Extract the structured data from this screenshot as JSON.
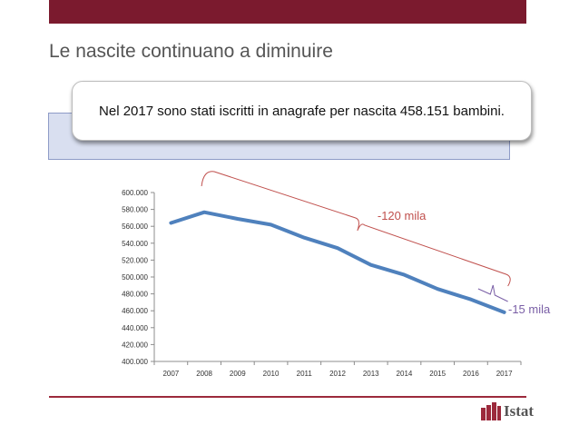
{
  "slide": {
    "title": "Le nascite continuano a diminuire",
    "callout": "Nel 2017 sono stati iscritti in anagrafe per nascita 458.151 bambini.",
    "logo_text": "Istat"
  },
  "colors": {
    "brand": "#7b1a2e",
    "line": "#4f81bd",
    "annotation_major": "#c0504d",
    "annotation_minor": "#7a5fa6"
  },
  "chart_data": {
    "type": "line",
    "title": "",
    "xlabel": "",
    "ylabel": "",
    "categories": [
      "2007",
      "2008",
      "2009",
      "2010",
      "2011",
      "2012",
      "2013",
      "2014",
      "2015",
      "2016",
      "2017"
    ],
    "series": [
      {
        "values": [
          563933,
          576659,
          568857,
          561944,
          546585,
          534186,
          514308,
          502596,
          485780,
          473438,
          458151
        ]
      }
    ],
    "ylim": [
      400000,
      600000
    ],
    "yticks": [
      400000,
      420000,
      440000,
      460000,
      480000,
      500000,
      520000,
      540000,
      560000,
      580000,
      600000
    ],
    "ytick_labels": [
      "400.000",
      "420.000",
      "440.000",
      "460.000",
      "480.000",
      "500.000",
      "520.000",
      "540.000",
      "560.000",
      "580.000",
      "600.000"
    ],
    "grid": false,
    "annotations": [
      {
        "text": "-120 mila",
        "from": "2008",
        "to": "2017",
        "color": "annotation_major"
      },
      {
        "text": "-15 mila",
        "from": "2016",
        "to": "2017",
        "color": "annotation_minor"
      }
    ]
  }
}
